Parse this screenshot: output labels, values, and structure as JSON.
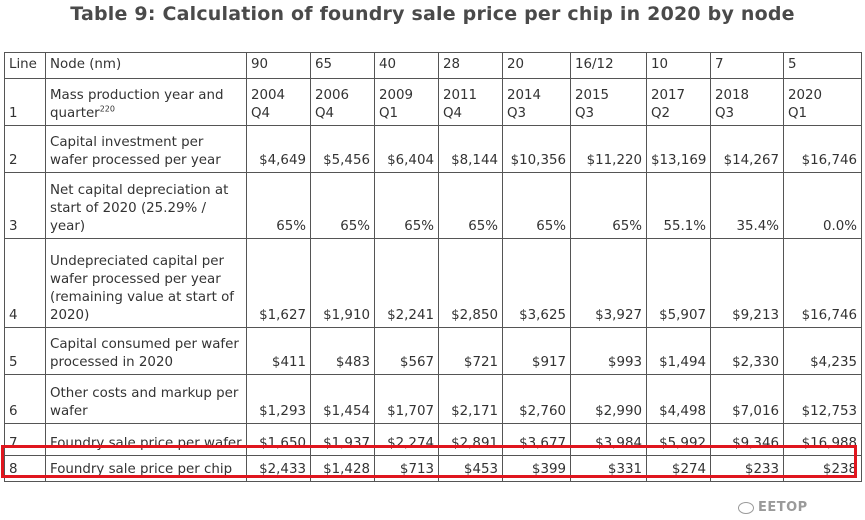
{
  "title": "Table 9: Calculation of foundry sale price per chip in 2020 by node",
  "header": {
    "line": "Line",
    "node": "Node (nm)",
    "nodes": [
      "90",
      "65",
      "40",
      "28",
      "20",
      "16/12",
      "10",
      "7",
      "5"
    ]
  },
  "rows": [
    {
      "line": "1",
      "label": "Mass production year and quarter",
      "label_sup": "220",
      "years": [
        "2004",
        "2006",
        "2009",
        "2011",
        "2014",
        "2015",
        "2017",
        "2018",
        "2020"
      ],
      "quarters": [
        "Q4",
        "Q4",
        "Q1",
        "Q4",
        "Q3",
        "Q3",
        "Q2",
        "Q3",
        "Q1"
      ]
    },
    {
      "line": "2",
      "label": "Capital investment per wafer processed per year",
      "values": [
        "$4,649",
        "$5,456",
        "$6,404",
        "$8,144",
        "$10,356",
        "$11,220",
        "$13,169",
        "$14,267",
        "$16,746"
      ]
    },
    {
      "line": "3",
      "label": "Net capital depreciation at start of 2020 (25.29% / year)",
      "values": [
        "65%",
        "65%",
        "65%",
        "65%",
        "65%",
        "65%",
        "55.1%",
        "35.4%",
        "0.0%"
      ]
    },
    {
      "line": "4",
      "label": "Undepreciated capital per wafer processed per year (remaining value at start of 2020)",
      "values": [
        "$1,627",
        "$1,910",
        "$2,241",
        "$2,850",
        "$3,625",
        "$3,927",
        "$5,907",
        "$9,213",
        "$16,746"
      ]
    },
    {
      "line": "5",
      "label": "Capital consumed per wafer processed in 2020",
      "values": [
        "$411",
        "$483",
        "$567",
        "$721",
        "$917",
        "$993",
        "$1,494",
        "$2,330",
        "$4,235"
      ]
    },
    {
      "line": "6",
      "label": "Other costs and markup per wafer",
      "values": [
        "$1,293",
        "$1,454",
        "$1,707",
        "$2,171",
        "$2,760",
        "$2,990",
        "$4,498",
        "$7,016",
        "$12,753"
      ]
    },
    {
      "line": "7",
      "label": "Foundry sale price per wafer",
      "values": [
        "$1,650",
        "$1,937",
        "$2,274",
        "$2,891",
        "$3,677",
        "$3,984",
        "$5,992",
        "$9,346",
        "$16,988"
      ]
    },
    {
      "line": "8",
      "label": "Foundry sale price per chip",
      "values": [
        "$2,433",
        "$1,428",
        "$713",
        "$453",
        "$399",
        "$331",
        "$274",
        "$233",
        "$238"
      ]
    }
  ],
  "highlight_color": "#e0161e",
  "watermark": "EETOP"
}
